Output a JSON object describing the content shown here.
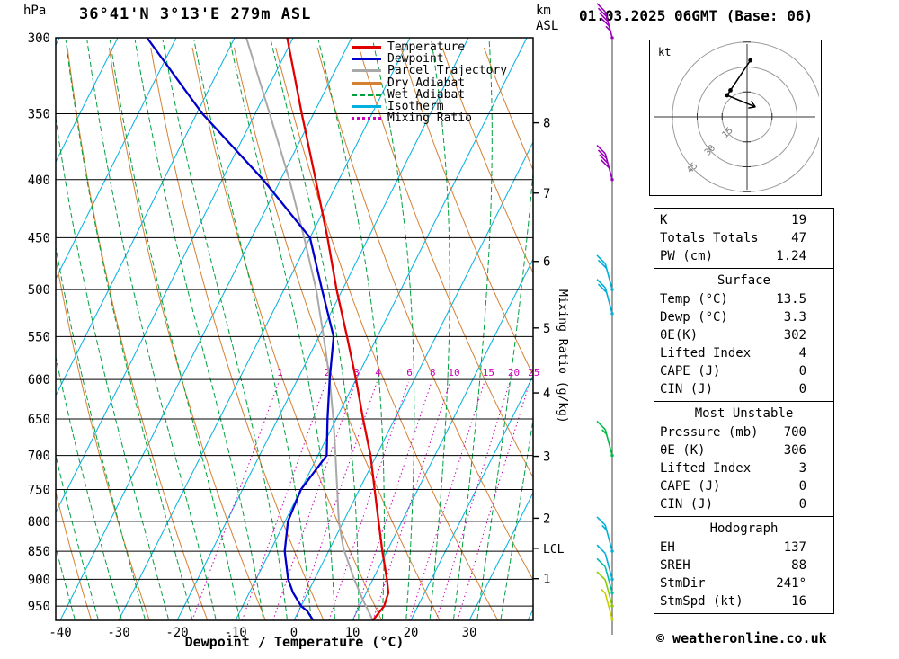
{
  "header": {
    "station_title": "36°41'N 3°13'E 279m ASL",
    "run_title": "01.03.2025 06GMT (Base: 06)"
  },
  "axes": {
    "pressure_unit": "hPa",
    "altitude_unit_line1": "km",
    "altitude_unit_line2": "ASL",
    "x_axis_label": "Dewpoint / Temperature (°C)",
    "mixing_ratio_axis_label": "Mixing Ratio (g/kg)",
    "pressure_ticks_hpa": [
      300,
      350,
      400,
      450,
      500,
      550,
      600,
      650,
      700,
      750,
      800,
      850,
      900,
      950
    ],
    "temperature_ticks_c": [
      -40,
      -30,
      -20,
      -10,
      0,
      10,
      20,
      30
    ],
    "altitude_ticks_km": [
      {
        "km": 1,
        "p_hpa": 898.8
      },
      {
        "km": 2,
        "p_hpa": 795.0
      },
      {
        "km": 3,
        "p_hpa": 701.2
      },
      {
        "km": 4,
        "p_hpa": 616.6
      },
      {
        "km": 5,
        "p_hpa": 540.5
      },
      {
        "km": 6,
        "p_hpa": 472.2
      },
      {
        "km": 7,
        "p_hpa": 411.1
      },
      {
        "km": 8,
        "p_hpa": 356.5
      }
    ],
    "lcl_label": "LCL",
    "lcl_pressure_hpa": 845
  },
  "colors": {
    "temperature": "#e00000",
    "dewpoint": "#0000cc",
    "parcel": "#a8a8a8",
    "dry_adiabat": "#d58033",
    "wet_adiabat": "#00a040",
    "isotherm": "#00b0e0",
    "mixing_ratio": "#cc00bb",
    "grid": "#000000",
    "wind_staff": "#404040",
    "hodograph_rings": "#999999"
  },
  "legend": {
    "items": [
      {
        "label": "Temperature",
        "color_key": "temperature",
        "style": "solid"
      },
      {
        "label": "Dewpoint",
        "color_key": "dewpoint",
        "style": "solid"
      },
      {
        "label": "Parcel Trajectory",
        "color_key": "parcel",
        "style": "solid"
      },
      {
        "label": "Dry Adiabat",
        "color_key": "dry_adiabat",
        "style": "solid"
      },
      {
        "label": "Wet Adiabat",
        "color_key": "wet_adiabat",
        "style": "dashed"
      },
      {
        "label": "Isotherm",
        "color_key": "isotherm",
        "style": "solid"
      },
      {
        "label": "Mixing Ratio",
        "color_key": "mixing_ratio",
        "style": "dotted"
      }
    ]
  },
  "chart_data": {
    "type": "skew-t-log-p",
    "pressure_range_hpa": [
      300,
      978
    ],
    "temperature_axis_range_c": [
      -40,
      38
    ],
    "isotherm_step_c": 10,
    "dry_adiabat_step_k": 10,
    "wet_adiabat_step_c": 4,
    "mixing_ratio_lines_gkg": [
      1,
      2,
      3,
      4,
      6,
      8,
      10,
      15,
      20,
      25
    ],
    "temperature_profile_p_c": [
      [
        978,
        13.5
      ],
      [
        950,
        14.2
      ],
      [
        925,
        13.8
      ],
      [
        900,
        12.4
      ],
      [
        850,
        9.2
      ],
      [
        800,
        6.0
      ],
      [
        750,
        2.6
      ],
      [
        700,
        -1.0
      ],
      [
        650,
        -5.4
      ],
      [
        600,
        -10.0
      ],
      [
        550,
        -15.2
      ],
      [
        500,
        -21.0
      ],
      [
        450,
        -27.0
      ],
      [
        400,
        -34.0
      ],
      [
        350,
        -42.0
      ],
      [
        300,
        -51.0
      ]
    ],
    "dewpoint_profile_p_c": [
      [
        978,
        3.3
      ],
      [
        960,
        1.5
      ],
      [
        950,
        0.0
      ],
      [
        925,
        -2.5
      ],
      [
        900,
        -4.5
      ],
      [
        850,
        -7.5
      ],
      [
        800,
        -9.5
      ],
      [
        750,
        -10.0
      ],
      [
        700,
        -8.5
      ],
      [
        650,
        -11.5
      ],
      [
        600,
        -14.5
      ],
      [
        550,
        -17.5
      ],
      [
        500,
        -23.5
      ],
      [
        450,
        -30.0
      ],
      [
        400,
        -43.0
      ],
      [
        350,
        -59.0
      ],
      [
        300,
        -75.0
      ]
    ],
    "parcel_profile_p_c": [
      [
        978,
        13.5
      ],
      [
        940,
        10.2
      ],
      [
        900,
        6.8
      ],
      [
        845,
        2.3
      ],
      [
        800,
        -0.8
      ],
      [
        750,
        -3.8
      ],
      [
        700,
        -7.0
      ],
      [
        650,
        -10.5
      ],
      [
        600,
        -14.5
      ],
      [
        550,
        -19.2
      ],
      [
        500,
        -24.5
      ],
      [
        450,
        -31.0
      ],
      [
        400,
        -38.5
      ],
      [
        350,
        -47.5
      ],
      [
        300,
        -58.0
      ]
    ],
    "winds": [
      {
        "p_hpa": 300,
        "speed_kt": 45,
        "dir_deg": 250,
        "color": "#9900bb"
      },
      {
        "p_hpa": 400,
        "speed_kt": 40,
        "dir_deg": 250,
        "color": "#9900bb"
      },
      {
        "p_hpa": 500,
        "speed_kt": 20,
        "dir_deg": 245,
        "color": "#00b0d8"
      },
      {
        "p_hpa": 525,
        "speed_kt": 20,
        "dir_deg": 245,
        "color": "#00b0d8"
      },
      {
        "p_hpa": 700,
        "speed_kt": 15,
        "dir_deg": 240,
        "color": "#00bb44"
      },
      {
        "p_hpa": 850,
        "speed_kt": 15,
        "dir_deg": 235,
        "color": "#00b0d8"
      },
      {
        "p_hpa": 900,
        "speed_kt": 10,
        "dir_deg": 230,
        "color": "#00b0d8"
      },
      {
        "p_hpa": 925,
        "speed_kt": 10,
        "dir_deg": 230,
        "color": "#00bbaa"
      },
      {
        "p_hpa": 950,
        "speed_kt": 10,
        "dir_deg": 225,
        "color": "#88cc00"
      },
      {
        "p_hpa": 976,
        "speed_kt": 5,
        "dir_deg": 220,
        "color": "#cccc00"
      }
    ],
    "hodograph": {
      "unit": "kt",
      "ring_step_kt": 15,
      "ring_labels": [
        "15",
        "30",
        "45"
      ],
      "trace_uv_kt": [
        [
          2,
          34
        ],
        [
          -10,
          16
        ],
        [
          -12,
          13
        ],
        [
          5,
          6
        ]
      ],
      "dot_point_count": 3
    }
  },
  "info_panels": [
    {
      "title": null,
      "rows": [
        [
          "K",
          "19"
        ],
        [
          "Totals Totals",
          "47"
        ],
        [
          "PW (cm)",
          "1.24"
        ]
      ]
    },
    {
      "title": "Surface",
      "rows": [
        [
          "Temp (°C)",
          "13.5"
        ],
        [
          "Dewp (°C)",
          "3.3"
        ],
        [
          "θE(K)",
          "302"
        ],
        [
          "Lifted Index",
          "4"
        ],
        [
          "CAPE (J)",
          "0"
        ],
        [
          "CIN (J)",
          "0"
        ]
      ]
    },
    {
      "title": "Most Unstable",
      "rows": [
        [
          "Pressure (mb)",
          "700"
        ],
        [
          "θE (K)",
          "306"
        ],
        [
          "Lifted Index",
          "3"
        ],
        [
          "CAPE (J)",
          "0"
        ],
        [
          "CIN (J)",
          "0"
        ]
      ]
    },
    {
      "title": "Hodograph",
      "rows": [
        [
          "EH",
          "137"
        ],
        [
          "SREH",
          "88"
        ],
        [
          "StmDir",
          "241°"
        ],
        [
          "StmSpd (kt)",
          "16"
        ]
      ]
    }
  ],
  "footer": {
    "copyright": "© weatheronline.co.uk"
  }
}
